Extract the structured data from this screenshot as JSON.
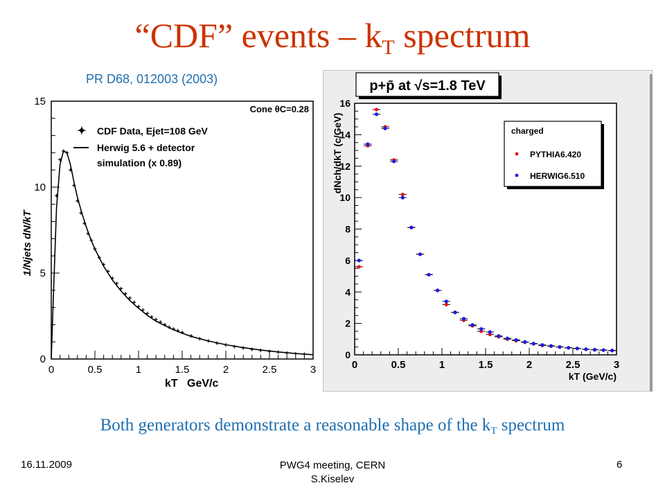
{
  "slide": {
    "title_main": "“CDF” events – k",
    "title_sub": "T",
    "title_end": " spectrum",
    "reference": "PR D68, 012003 (2003)",
    "subtitle_main": "Both generators demonstrate a reasonable shape of the k",
    "subtitle_sub": "T",
    "subtitle_end": " spectrum",
    "footer": {
      "date": "16.11.2009",
      "meeting_line1": "PWG4 meeting, CERN",
      "meeting_line2": "S.Kiselev",
      "page": "6"
    }
  },
  "chart_data": [
    {
      "type": "line",
      "title": "",
      "corner_label": "Cone θC=0.28",
      "xlabel": "kT   GeV/c",
      "ylabel": "1/Njets dN/kT",
      "xlim": [
        0,
        3
      ],
      "ylim": [
        0,
        15
      ],
      "xticks": [
        "0",
        "0.5",
        "1",
        "1.5",
        "2",
        "2.5",
        "3"
      ],
      "yticks": [
        "0",
        "5",
        "10",
        "15"
      ],
      "legend_position": "top-right",
      "series": [
        {
          "name": "CDF Data, Ejet=108 GeV",
          "style": "markers",
          "x": [
            0.06,
            0.1,
            0.14,
            0.18,
            0.22,
            0.26,
            0.3,
            0.34,
            0.38,
            0.42,
            0.46,
            0.5,
            0.55,
            0.6,
            0.65,
            0.7,
            0.75,
            0.8,
            0.85,
            0.9,
            0.95,
            1.0,
            1.05,
            1.1,
            1.15,
            1.2,
            1.25,
            1.3,
            1.35,
            1.4,
            1.45,
            1.5,
            1.6,
            1.7,
            1.8,
            1.9,
            2.0,
            2.1,
            2.2,
            2.3,
            2.4,
            2.5,
            2.6,
            2.7,
            2.8,
            2.9
          ],
          "y": [
            9.5,
            11.6,
            12.1,
            12.0,
            11.0,
            10.1,
            9.2,
            8.5,
            7.9,
            7.3,
            6.9,
            6.4,
            5.9,
            5.5,
            5.1,
            4.7,
            4.4,
            4.1,
            3.8,
            3.55,
            3.3,
            3.05,
            2.85,
            2.65,
            2.45,
            2.3,
            2.15,
            2.0,
            1.85,
            1.75,
            1.65,
            1.55,
            1.35,
            1.18,
            1.05,
            0.92,
            0.82,
            0.72,
            0.64,
            0.56,
            0.5,
            0.44,
            0.4,
            0.35,
            0.31,
            0.28
          ]
        },
        {
          "name": "Herwig 5.6 + detector simulation (x 0.89)",
          "style": "line",
          "x": [
            0.0,
            0.03,
            0.06,
            0.1,
            0.14,
            0.18,
            0.22,
            0.26,
            0.3,
            0.35,
            0.4,
            0.45,
            0.5,
            0.6,
            0.7,
            0.8,
            0.9,
            1.0,
            1.1,
            1.2,
            1.3,
            1.4,
            1.5,
            1.6,
            1.8,
            2.0,
            2.2,
            2.4,
            2.6,
            2.8,
            3.0
          ],
          "y": [
            0.0,
            4.5,
            8.8,
            11.3,
            12.1,
            12.0,
            11.3,
            10.3,
            9.4,
            8.5,
            7.7,
            7.0,
            6.4,
            5.4,
            4.6,
            3.95,
            3.4,
            2.95,
            2.55,
            2.2,
            1.95,
            1.7,
            1.5,
            1.32,
            1.05,
            0.83,
            0.66,
            0.52,
            0.41,
            0.32,
            0.25
          ]
        }
      ]
    },
    {
      "type": "scatter",
      "title": "p+p̄ at √s=1.8 TeV",
      "xlabel": "kT (GeV/c)",
      "ylabel": "dNch/dkT (c/GeV)",
      "xlim": [
        0,
        3
      ],
      "ylim": [
        0,
        16
      ],
      "xticks": [
        "0",
        "0.5",
        "1",
        "1.5",
        "2",
        "2.5",
        "3"
      ],
      "yticks": [
        "0",
        "2",
        "4",
        "6",
        "8",
        "10",
        "12",
        "14",
        "16"
      ],
      "legend_title": "charged",
      "legend_position": "top-right",
      "colors": {
        "PYTHIA6.420": "#ee1111",
        "HERWIG6.510": "#1a1aee"
      },
      "x": [
        0.05,
        0.15,
        0.25,
        0.35,
        0.45,
        0.55,
        0.65,
        0.75,
        0.85,
        0.95,
        1.05,
        1.15,
        1.25,
        1.35,
        1.45,
        1.55,
        1.65,
        1.75,
        1.85,
        1.95,
        2.05,
        2.15,
        2.25,
        2.35,
        2.45,
        2.55,
        2.65,
        2.75,
        2.85,
        2.95
      ],
      "series": [
        {
          "name": "PYTHIA6.420",
          "values": [
            5.6,
            13.3,
            15.6,
            14.5,
            12.4,
            10.2,
            8.1,
            6.4,
            5.1,
            4.1,
            3.2,
            2.7,
            2.2,
            1.85,
            1.5,
            1.3,
            1.15,
            1.0,
            0.9,
            0.8,
            0.7,
            0.6,
            0.55,
            0.5,
            0.45,
            0.4,
            0.35,
            0.32,
            0.3,
            0.27
          ]
        },
        {
          "name": "HERWIG6.510",
          "values": [
            6.0,
            13.4,
            15.3,
            14.4,
            12.3,
            10.0,
            8.1,
            6.4,
            5.1,
            4.1,
            3.4,
            2.7,
            2.3,
            1.9,
            1.65,
            1.45,
            1.2,
            1.05,
            0.95,
            0.82,
            0.72,
            0.63,
            0.57,
            0.5,
            0.45,
            0.41,
            0.36,
            0.33,
            0.3,
            0.28
          ]
        }
      ]
    }
  ]
}
